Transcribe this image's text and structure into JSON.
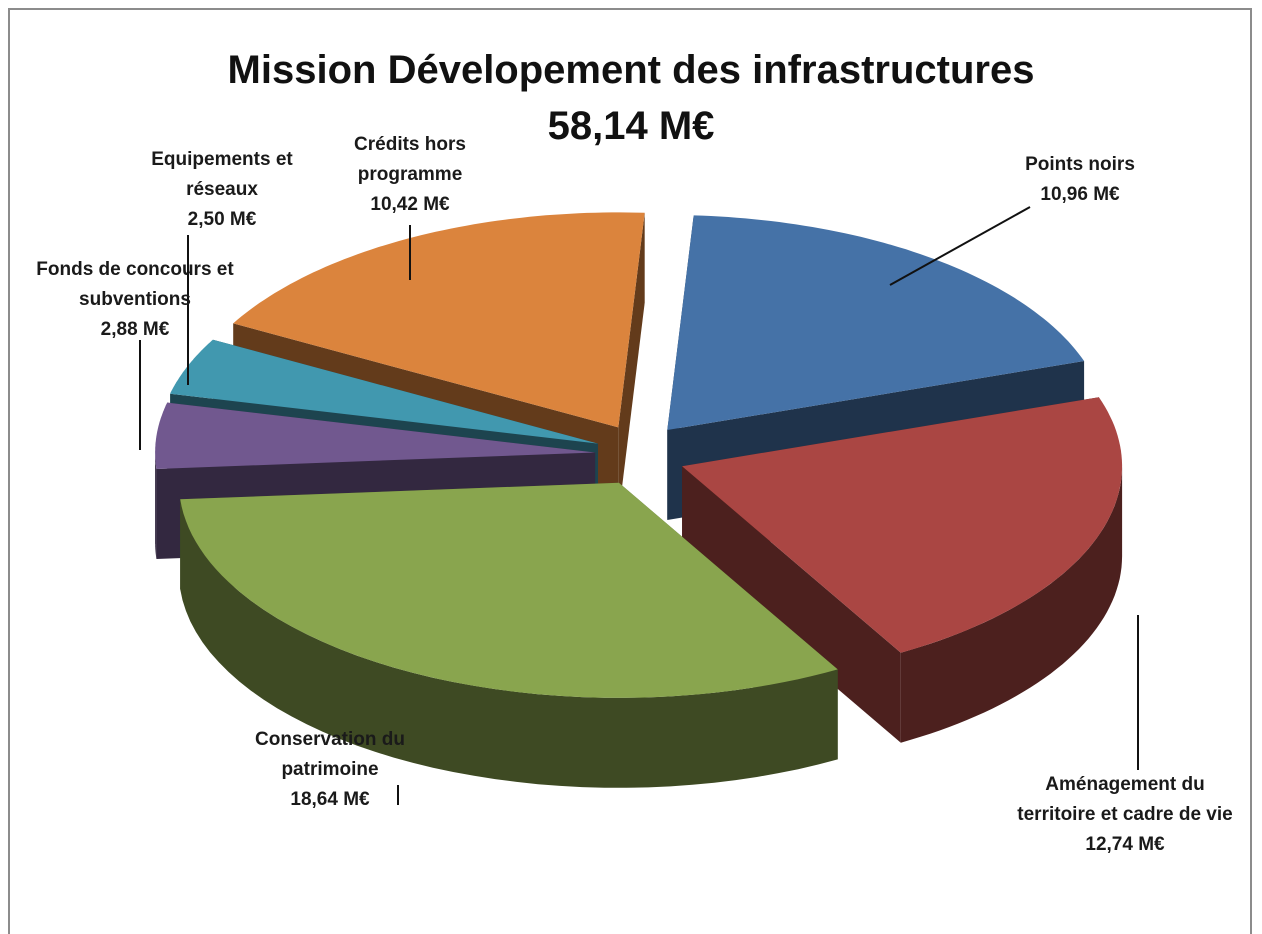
{
  "chart_data": {
    "type": "pie3d",
    "title": "Mission  Dévelopement des infrastructures",
    "subtitle": "58,14 M€",
    "categories": [
      "Points noirs",
      "Aménagement du territoire et cadre de vie",
      "Conservation du patrimoine",
      "Fonds de concours et subventions",
      "Equipements et réseaux",
      "Crédits hors programme"
    ],
    "values": [
      10.96,
      12.74,
      18.64,
      2.88,
      2.5,
      10.42
    ],
    "value_labels": [
      "10,96 M€",
      "12,74 M€",
      "18,64 M€",
      "2,88 M€",
      "2,50 M€",
      "10,42 M€"
    ],
    "colors": [
      "#4572a7",
      "#aa4643",
      "#89a54e",
      "#71588f",
      "#4198af",
      "#db843d"
    ]
  }
}
